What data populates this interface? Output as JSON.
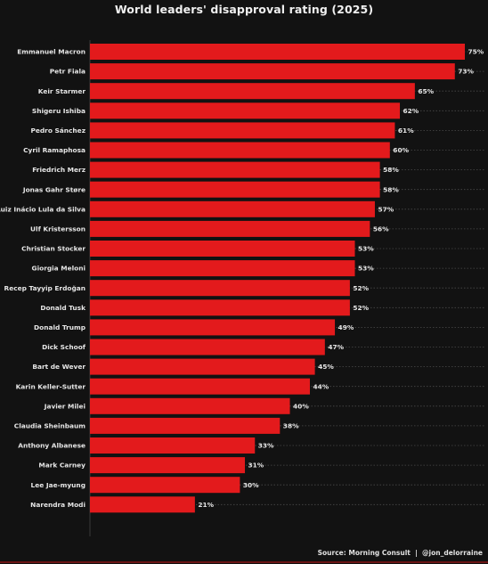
{
  "chart_data": {
    "type": "bar",
    "orientation": "horizontal",
    "title": "World leaders' disapproval rating (2025)",
    "xlabel": "",
    "ylabel": "",
    "value_suffix": "%",
    "xlim": [
      0,
      75
    ],
    "grid": "dotted guide lines",
    "bar_color": "#e31a1c",
    "categories": [
      "Emmanuel Macron",
      "Petr Fiala",
      "Keir Starmer",
      "Shigeru Ishiba",
      "Pedro Sánchez",
      "Cyril Ramaphosa",
      "Friedrich Merz",
      "Jonas Gahr Støre",
      "Luiz Inácio Lula da Silva",
      "Ulf Kristersson",
      "Christian Stocker",
      "Giorgia Meloni",
      "Recep Tayyip Erdoğan",
      "Donald Tusk",
      "Donald Trump",
      "Dick Schoof",
      "Bart de Wever",
      "Karin Keller-Sutter",
      "Javier Milei",
      "Claudia Sheinbaum",
      "Anthony Albanese",
      "Mark Carney",
      "Lee Jae-myung",
      "Narendra Modi"
    ],
    "values": [
      75,
      73,
      65,
      62,
      61,
      60,
      58,
      58,
      57,
      56,
      53,
      53,
      52,
      52,
      49,
      47,
      45,
      44,
      40,
      38,
      33,
      31,
      30,
      21
    ]
  },
  "source_text": "Source: Morning Consult  |  @jon_delorraine"
}
